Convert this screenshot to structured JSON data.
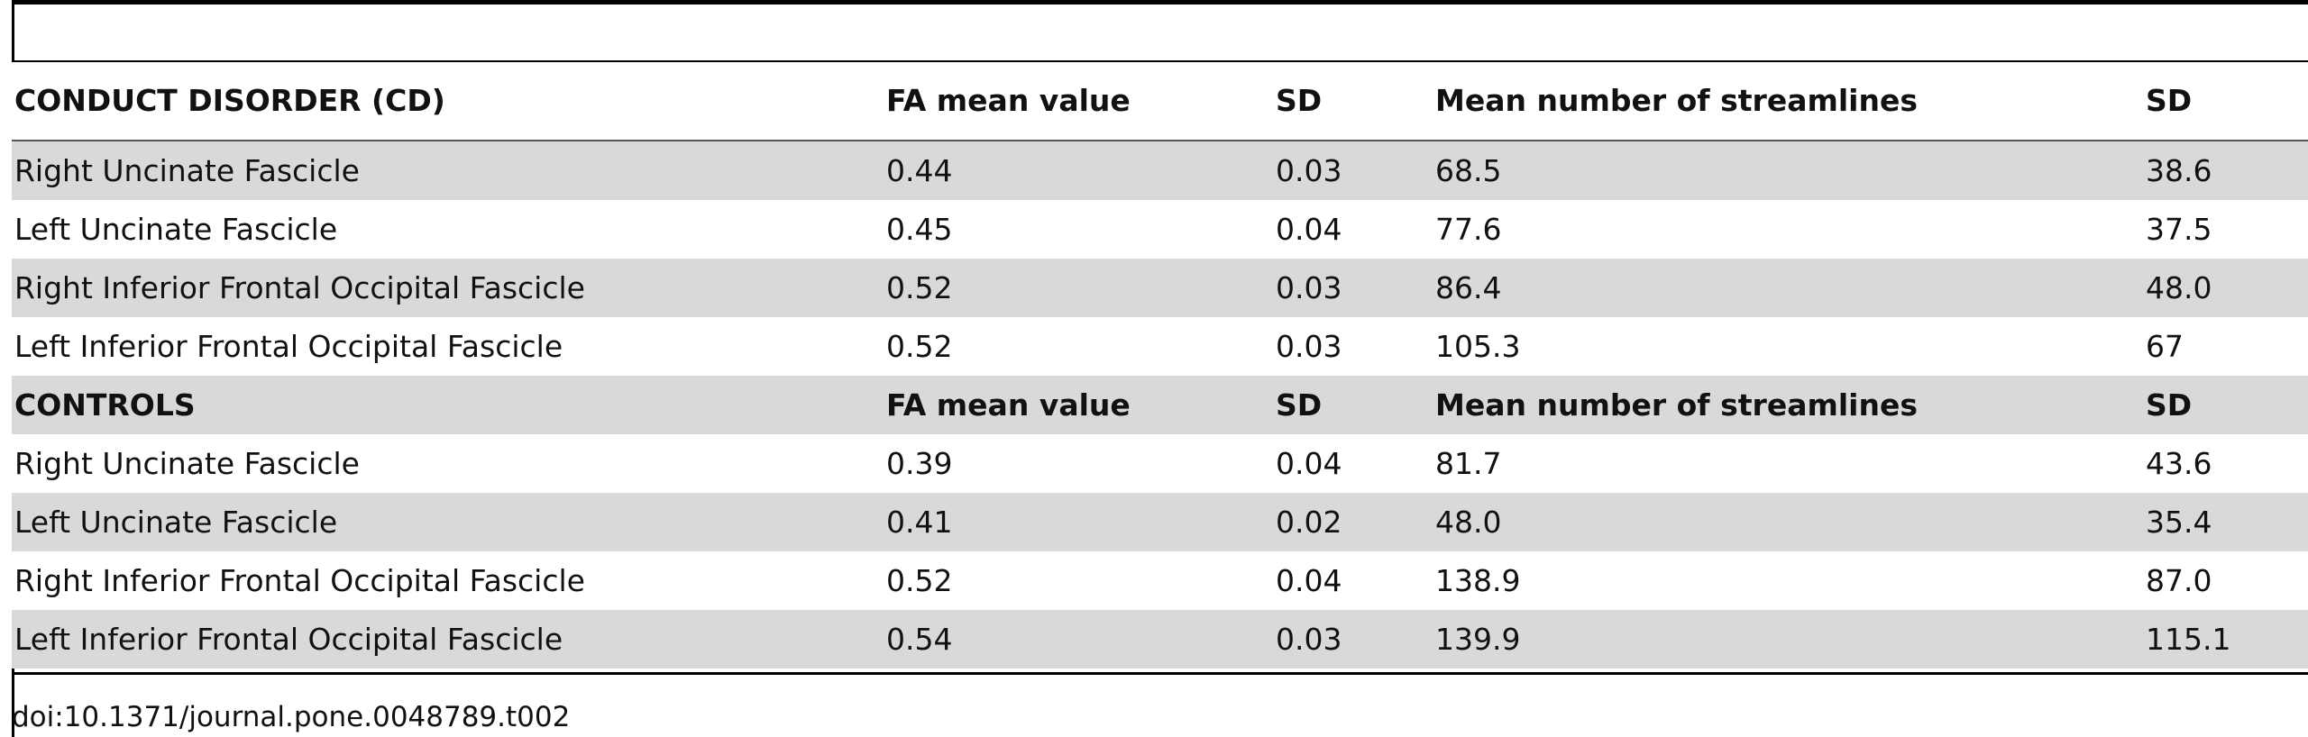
{
  "table": {
    "columns_cd": [
      "CONDUCT DISORDER (CD)",
      "FA mean value",
      "SD",
      "Mean number of streamlines",
      "SD"
    ],
    "cd_rows": [
      {
        "tract": "Right Uncinate Fascicle",
        "fa_mean": "0.44",
        "fa_sd": "0.03",
        "streamlines_mean": "68.5",
        "streamlines_sd": "38.6"
      },
      {
        "tract": "Left Uncinate Fascicle",
        "fa_mean": "0.45",
        "fa_sd": "0.04",
        "streamlines_mean": "77.6",
        "streamlines_sd": "37.5"
      },
      {
        "tract": "Right Inferior Frontal Occipital Fascicle",
        "fa_mean": "0.52",
        "fa_sd": "0.03",
        "streamlines_mean": "86.4",
        "streamlines_sd": "48.0"
      },
      {
        "tract": "Left Inferior Frontal Occipital Fascicle",
        "fa_mean": "0.52",
        "fa_sd": "0.03",
        "streamlines_mean": "105.3",
        "streamlines_sd": "67"
      }
    ],
    "columns_controls": [
      "CONTROLS",
      "FA mean value",
      "SD",
      "Mean number of streamlines",
      "SD"
    ],
    "control_rows": [
      {
        "tract": "Right Uncinate Fascicle",
        "fa_mean": "0.39",
        "fa_sd": "0.04",
        "streamlines_mean": "81.7",
        "streamlines_sd": "43.6"
      },
      {
        "tract": "Left Uncinate Fascicle",
        "fa_mean": "0.41",
        "fa_sd": "0.02",
        "streamlines_mean": "48.0",
        "streamlines_sd": "35.4"
      },
      {
        "tract": "Right Inferior Frontal Occipital Fascicle",
        "fa_mean": "0.52",
        "fa_sd": "0.04",
        "streamlines_mean": "138.9",
        "streamlines_sd": "87.0"
      },
      {
        "tract": "Left Inferior Frontal Occipital Fascicle",
        "fa_mean": "0.54",
        "fa_sd": "0.03",
        "streamlines_mean": "139.9",
        "streamlines_sd": "115.1"
      }
    ]
  },
  "footnote": "doi:10.1371/journal.pone.0048789.t002"
}
